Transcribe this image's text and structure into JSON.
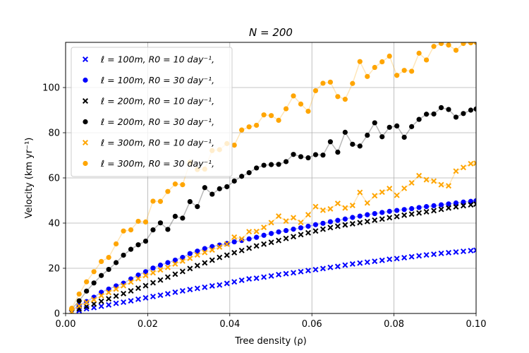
{
  "chart_data": {
    "type": "scatter",
    "title": "N = 200",
    "xlabel": "Tree density (ρ)",
    "ylabel": "Velocity  (km yr⁻¹)",
    "xlim": [
      0,
      0.1
    ],
    "ylim": [
      0,
      120
    ],
    "grid": true,
    "legend_position": "top-left",
    "x_ticks": [
      0.0,
      0.02,
      0.04,
      0.06,
      0.08,
      0.1
    ],
    "x_tick_labels": [
      "0.00",
      "0.02",
      "0.04",
      "0.06",
      "0.08",
      "0.10"
    ],
    "y_ticks": [
      0,
      20,
      40,
      60,
      80,
      100
    ],
    "y_tick_labels": [
      "0",
      "20",
      "40",
      "60",
      "80",
      "100"
    ],
    "x": [
      0.0015,
      0.0033,
      0.0051,
      0.0069,
      0.0087,
      0.0105,
      0.0123,
      0.0141,
      0.0159,
      0.0177,
      0.0195,
      0.0213,
      0.0231,
      0.0249,
      0.0267,
      0.0285,
      0.0303,
      0.0321,
      0.0339,
      0.0357,
      0.0375,
      0.0393,
      0.0411,
      0.0429,
      0.0447,
      0.0465,
      0.0483,
      0.0501,
      0.0519,
      0.0537,
      0.0555,
      0.0573,
      0.0591,
      0.0609,
      0.0627,
      0.0645,
      0.0663,
      0.0681,
      0.0699,
      0.0717,
      0.0735,
      0.0753,
      0.0771,
      0.0789,
      0.0807,
      0.0825,
      0.0843,
      0.0861,
      0.0879,
      0.0897,
      0.0915,
      0.0933,
      0.0951,
      0.0969,
      0.0987,
      0.1
    ],
    "series": [
      {
        "name": "ℓ = 100m,  R0 = 10 day⁻¹,",
        "color": "#0000ff",
        "marker": "x",
        "show_line": false,
        "values": [
          0.5,
          1.2,
          2.1,
          2.6,
          3.2,
          3.8,
          4.5,
          5.0,
          5.6,
          6.3,
          6.9,
          7.5,
          8.1,
          8.7,
          9.4,
          10.0,
          10.6,
          11.1,
          11.6,
          12.2,
          12.6,
          13.3,
          14.0,
          14.7,
          15.3,
          15.6,
          16.1,
          16.6,
          17.2,
          17.6,
          18.0,
          18.5,
          19.0,
          19.4,
          19.9,
          20.4,
          20.8,
          21.4,
          21.9,
          22.3,
          22.7,
          23.1,
          23.5,
          24.0,
          24.3,
          24.7,
          25.1,
          25.5,
          25.9,
          26.2,
          26.6,
          26.9,
          27.2,
          27.5,
          27.8,
          28.0
        ]
      },
      {
        "name": "ℓ = 100m,  R0 = 30 day⁻¹,",
        "color": "#0000ff",
        "marker": "o",
        "show_line": true,
        "values": [
          1.5,
          3.6,
          5.3,
          7.2,
          9.4,
          10.8,
          12.2,
          13.4,
          15.3,
          17.0,
          18.5,
          20.1,
          21.4,
          22.5,
          23.6,
          24.8,
          26.5,
          27.6,
          28.7,
          29.6,
          30.3,
          31.0,
          31.7,
          32.3,
          33.0,
          33.7,
          34.6,
          35.4,
          36.1,
          36.7,
          37.3,
          37.9,
          38.6,
          39.3,
          39.9,
          40.6,
          41.2,
          41.8,
          42.5,
          43.1,
          43.7,
          44.2,
          44.7,
          45.2,
          45.6,
          46.0,
          46.4,
          46.9,
          47.3,
          47.7,
          48.1,
          48.5,
          48.9,
          49.3,
          49.6,
          49.9
        ]
      },
      {
        "name": "ℓ = 200m,  R0 = 10 day⁻¹,",
        "color": "#000000",
        "marker": "x",
        "show_line": false,
        "values": [
          0.6,
          2.0,
          3.1,
          4.2,
          5.4,
          6.5,
          7.7,
          8.8,
          10.0,
          11.2,
          12.3,
          13.6,
          14.8,
          16.1,
          17.4,
          18.6,
          19.9,
          21.2,
          22.4,
          23.6,
          24.8,
          25.8,
          26.9,
          27.9,
          28.9,
          29.9,
          30.7,
          31.5,
          32.3,
          33.2,
          34.0,
          34.9,
          35.7,
          36.5,
          37.3,
          38.0,
          38.6,
          39.2,
          39.7,
          40.2,
          40.7,
          41.3,
          41.8,
          42.4,
          42.9,
          43.5,
          44.0,
          44.5,
          45.0,
          45.5,
          46.1,
          46.7,
          47.2,
          47.7,
          48.1,
          48.4
        ]
      },
      {
        "name": "ℓ = 200m,  R0 = 30 day⁻¹,",
        "color": "#000000",
        "marker": "o",
        "show_line": true,
        "values": [
          1.9,
          5.6,
          9.9,
          13.5,
          16.8,
          19.5,
          22.5,
          25.8,
          28.4,
          30.4,
          32.0,
          37.0,
          40.1,
          37.2,
          43.0,
          42.2,
          49.5,
          47.3,
          55.7,
          52.8,
          55.2,
          56.1,
          58.6,
          60.7,
          62.3,
          64.4,
          65.6,
          65.9,
          66.0,
          67.2,
          70.4,
          69.4,
          68.9,
          70.3,
          70.1,
          76.0,
          71.4,
          80.2,
          74.9,
          74.1,
          78.9,
          84.4,
          78.2,
          82.4,
          83.0,
          78.0,
          82.7,
          85.9,
          88.2,
          88.3,
          91.1,
          90.3,
          86.9,
          88.5,
          90.0,
          90.5
        ]
      },
      {
        "name": "ℓ = 300m,  R0 = 10 day⁻¹,",
        "color": "#ffa500",
        "marker": "x",
        "show_line": true,
        "values": [
          0.8,
          3.3,
          4.9,
          6.1,
          7.9,
          9.3,
          10.8,
          12.3,
          13.9,
          15.4,
          16.8,
          18.0,
          19.3,
          20.4,
          21.9,
          23.2,
          24.4,
          25.9,
          27.0,
          28.1,
          29.4,
          30.7,
          33.8,
          33.0,
          36.2,
          36.3,
          38.1,
          40.2,
          43.1,
          40.9,
          42.4,
          40.3,
          43.7,
          47.3,
          45.7,
          46.3,
          48.7,
          46.7,
          47.8,
          53.6,
          48.9,
          52.1,
          53.7,
          55.3,
          52.3,
          55.4,
          57.8,
          61.0,
          59.2,
          58.6,
          57.0,
          56.5,
          63.0,
          64.6,
          66.3,
          66.5
        ]
      },
      {
        "name": "ℓ = 300m,  R0 = 30 day⁻¹,",
        "color": "#ffa500",
        "marker": "o",
        "show_line": true,
        "values": [
          2.3,
          8.6,
          14.0,
          18.5,
          23.0,
          24.8,
          30.8,
          36.5,
          37.0,
          40.8,
          40.5,
          49.7,
          49.6,
          54.0,
          57.3,
          57.0,
          66.9,
          63.7,
          63.9,
          72.1,
          72.5,
          75.2,
          74.5,
          81.2,
          82.6,
          83.3,
          87.9,
          87.6,
          85.5,
          90.6,
          96.3,
          92.7,
          89.5,
          98.6,
          101.9,
          102.4,
          96.0,
          94.8,
          101.8,
          111.5,
          104.9,
          108.9,
          111.4,
          113.9,
          105.4,
          107.6,
          107.2,
          115.2,
          112.2,
          118.2,
          119.5,
          118.8,
          116.5,
          119.5,
          119.8,
          120.0
        ]
      }
    ]
  }
}
